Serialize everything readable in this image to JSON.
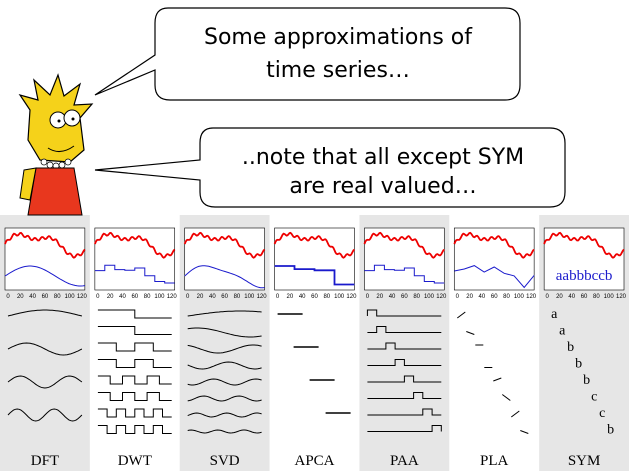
{
  "bubbles": [
    {
      "lines": [
        "Some approximations of",
        "time series…"
      ]
    },
    {
      "lines": [
        "..note that all except SYM",
        "are real valued…"
      ]
    }
  ],
  "panels": [
    {
      "label": "DFT"
    },
    {
      "label": "DWT"
    },
    {
      "label": "SVD"
    },
    {
      "label": "APCA"
    },
    {
      "label": "PAA"
    },
    {
      "label": "PLA"
    },
    {
      "label": "SYM"
    }
  ],
  "axis_ticks": [
    0,
    20,
    40,
    60,
    80,
    100,
    120
  ],
  "sym": {
    "string": "aabbbccb",
    "letters": [
      "a",
      "a",
      "b",
      "b",
      "b",
      "c",
      "c",
      "b"
    ]
  }
}
